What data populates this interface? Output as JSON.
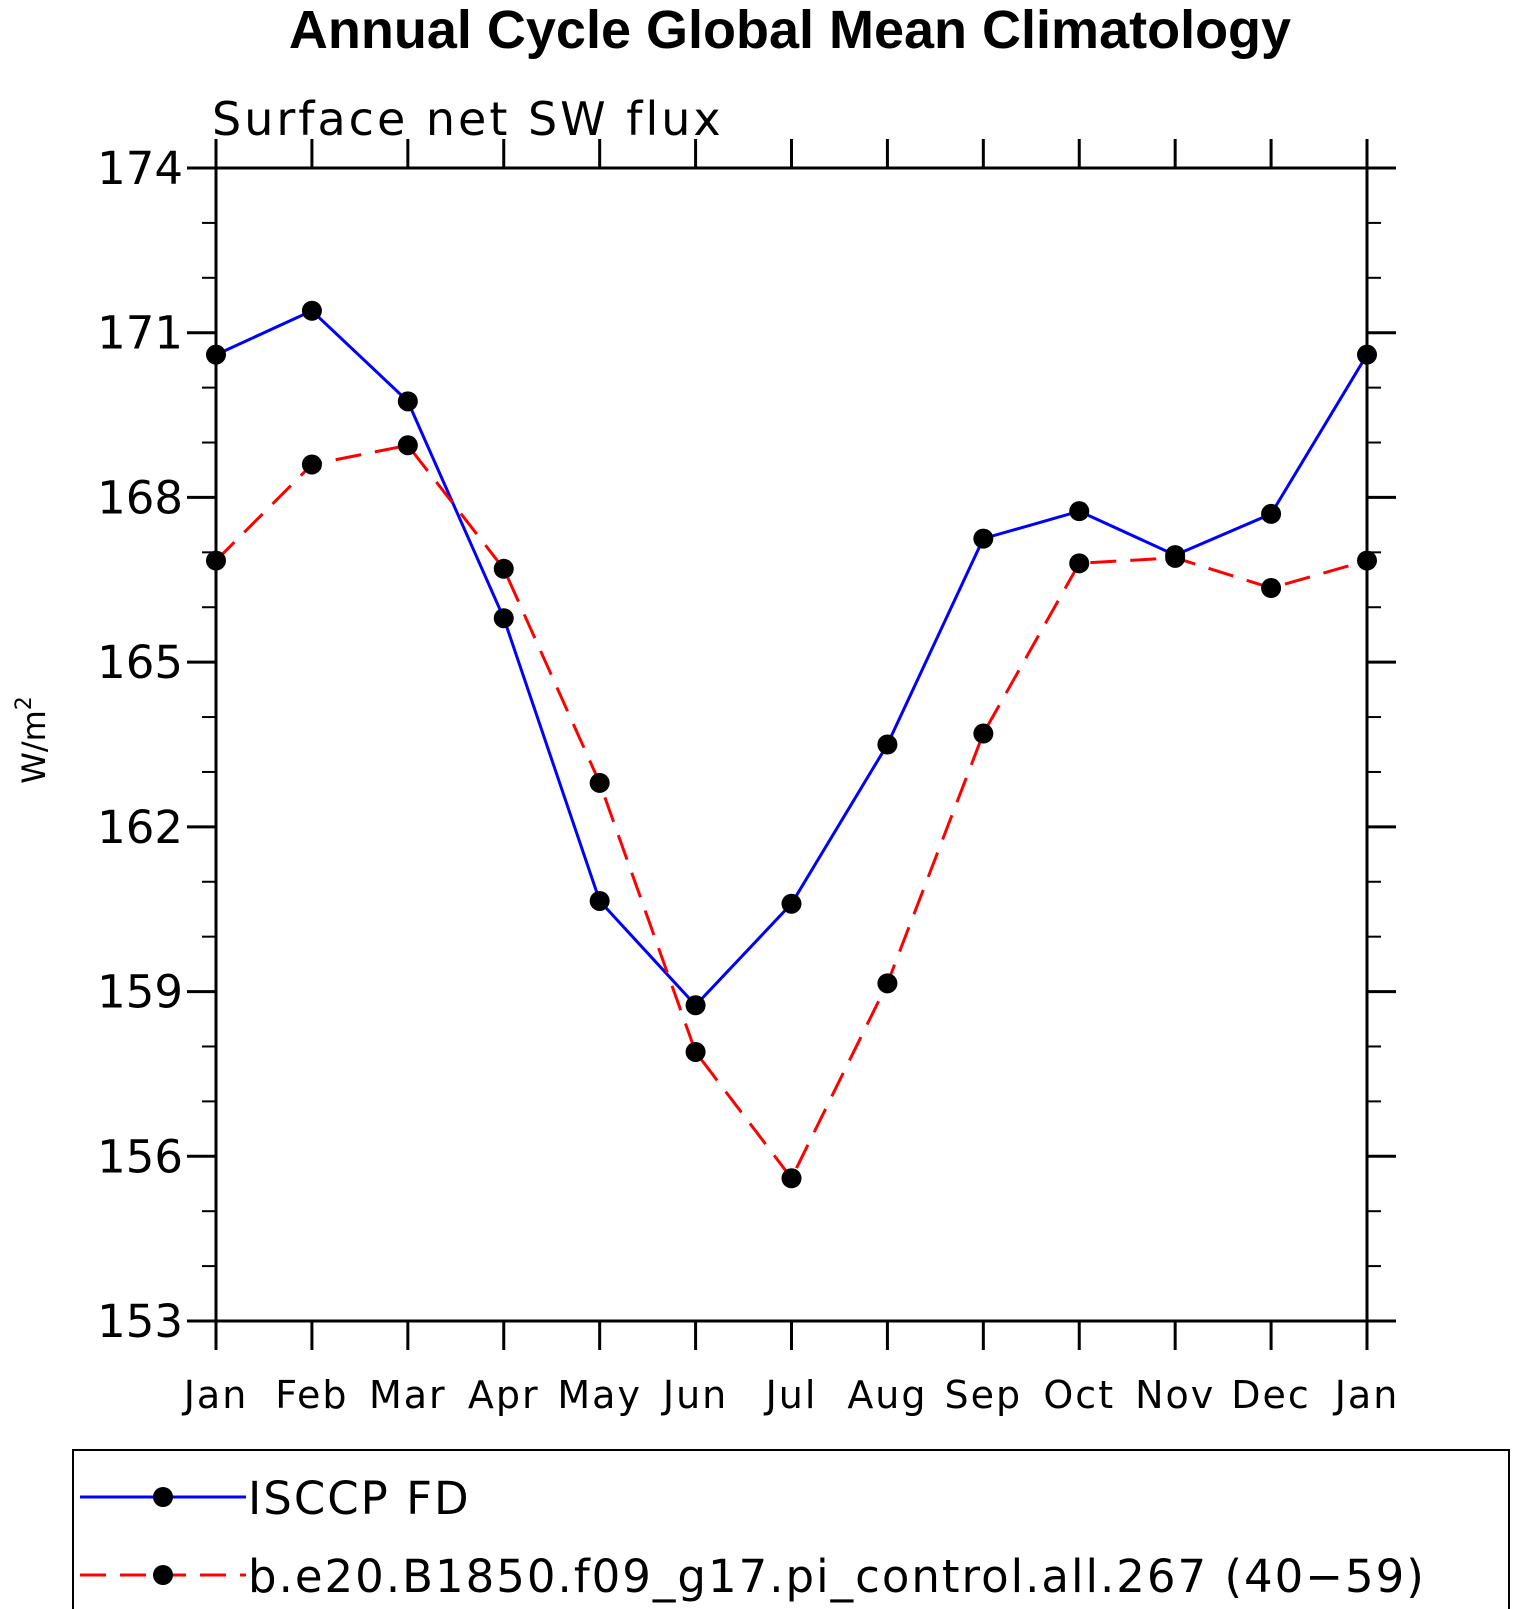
{
  "chart_data": {
    "type": "line",
    "title": "Annual Cycle Global Mean Climatology",
    "subtitle": "Surface net SW flux",
    "xlabel": "",
    "ylabel": "W/m",
    "ylabel_superscript": "2",
    "ylim": [
      153,
      174
    ],
    "yticks": [
      "153",
      "156",
      "159",
      "162",
      "165",
      "168",
      "171",
      "174"
    ],
    "categories": [
      "Jan",
      "Feb",
      "Mar",
      "Apr",
      "May",
      "Jun",
      "Jul",
      "Aug",
      "Sep",
      "Oct",
      "Nov",
      "Dec",
      "Jan"
    ],
    "grid": false,
    "legend_position": "bottom",
    "series": [
      {
        "name": "ISCCP FD",
        "color": "#0000ff",
        "dash": "solid",
        "marker": "filled-circle",
        "values": [
          170.6,
          171.4,
          169.75,
          165.8,
          160.65,
          158.75,
          160.6,
          163.5,
          167.25,
          167.75,
          166.95,
          167.7,
          170.6
        ]
      },
      {
        "name": "b.e20.B1850.f09_g17.pi_control.all.267 (40−59)",
        "color": "#ff0000",
        "dash": "dashed",
        "marker": "filled-circle",
        "values": [
          166.85,
          168.6,
          168.95,
          166.7,
          162.8,
          157.9,
          155.6,
          159.15,
          163.7,
          166.8,
          166.9,
          166.35,
          166.85
        ]
      }
    ]
  }
}
